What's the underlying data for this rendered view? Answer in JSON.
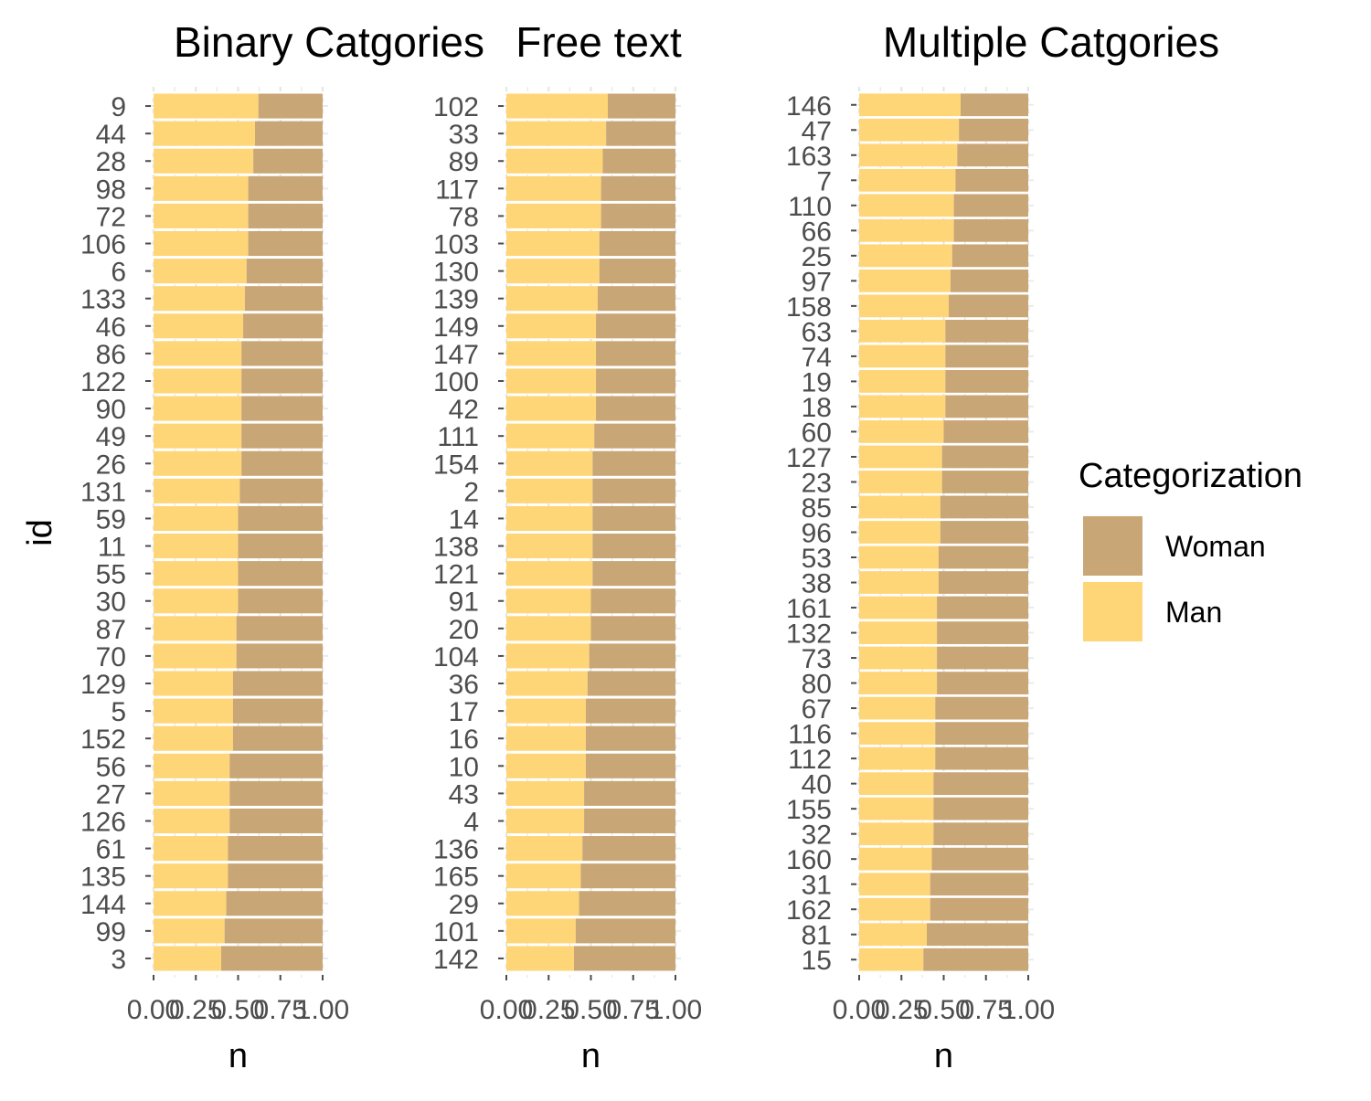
{
  "chart_data": {
    "type": "bar",
    "orientation": "horizontal",
    "stacked": true,
    "normalized": true,
    "grid": true,
    "legend_position": "right",
    "legend": {
      "title": "Categorization",
      "entries": [
        {
          "label": "Woman",
          "color": "#C8A676"
        },
        {
          "label": "Man",
          "color": "#FFD677"
        }
      ]
    },
    "y_axis_label": "id",
    "x_axis_label": "n",
    "xlim": [
      0,
      1
    ],
    "x_ticks": [
      "0.00",
      "0.25",
      "0.50",
      "0.75",
      "1.00"
    ],
    "x_tick_values": [
      0,
      0.25,
      0.5,
      0.75,
      1
    ],
    "panels": [
      {
        "title": "Binary Catgories",
        "xlabel": "n",
        "ids": [
          "9",
          "44",
          "28",
          "98",
          "72",
          "106",
          "6",
          "133",
          "46",
          "86",
          "122",
          "90",
          "49",
          "26",
          "131",
          "59",
          "11",
          "55",
          "30",
          "87",
          "70",
          "129",
          "5",
          "152",
          "56",
          "27",
          "126",
          "61",
          "135",
          "144",
          "99",
          "3"
        ],
        "man": [
          0.62,
          0.6,
          0.59,
          0.56,
          0.56,
          0.56,
          0.55,
          0.54,
          0.53,
          0.52,
          0.52,
          0.52,
          0.52,
          0.52,
          0.51,
          0.5,
          0.5,
          0.5,
          0.5,
          0.49,
          0.49,
          0.47,
          0.47,
          0.47,
          0.45,
          0.45,
          0.45,
          0.44,
          0.44,
          0.43,
          0.42,
          0.4
        ]
      },
      {
        "title": "Free text",
        "xlabel": "n",
        "ids": [
          "102",
          "33",
          "89",
          "117",
          "78",
          "103",
          "130",
          "139",
          "149",
          "147",
          "100",
          "42",
          "111",
          "154",
          "2",
          "14",
          "138",
          "121",
          "91",
          "20",
          "104",
          "36",
          "17",
          "16",
          "10",
          "43",
          "4",
          "136",
          "165",
          "29",
          "101",
          "142"
        ],
        "man": [
          0.6,
          0.59,
          0.57,
          0.56,
          0.56,
          0.55,
          0.55,
          0.54,
          0.53,
          0.53,
          0.53,
          0.53,
          0.52,
          0.51,
          0.51,
          0.51,
          0.51,
          0.51,
          0.5,
          0.5,
          0.49,
          0.48,
          0.47,
          0.47,
          0.47,
          0.46,
          0.46,
          0.45,
          0.44,
          0.43,
          0.41,
          0.4
        ]
      },
      {
        "title": "Multiple Catgories",
        "xlabel": "n",
        "ids": [
          "146",
          "47",
          "163",
          "7",
          "110",
          "66",
          "25",
          "97",
          "158",
          "63",
          "74",
          "19",
          "18",
          "60",
          "127",
          "23",
          "85",
          "96",
          "53",
          "38",
          "161",
          "132",
          "73",
          "80",
          "67",
          "116",
          "112",
          "40",
          "155",
          "32",
          "160",
          "31",
          "162",
          "81",
          "15"
        ],
        "man": [
          0.6,
          0.59,
          0.58,
          0.57,
          0.56,
          0.56,
          0.55,
          0.54,
          0.53,
          0.51,
          0.51,
          0.51,
          0.51,
          0.5,
          0.49,
          0.49,
          0.48,
          0.48,
          0.47,
          0.47,
          0.46,
          0.46,
          0.46,
          0.46,
          0.45,
          0.45,
          0.45,
          0.44,
          0.44,
          0.44,
          0.43,
          0.42,
          0.42,
          0.4,
          0.38
        ]
      }
    ]
  }
}
